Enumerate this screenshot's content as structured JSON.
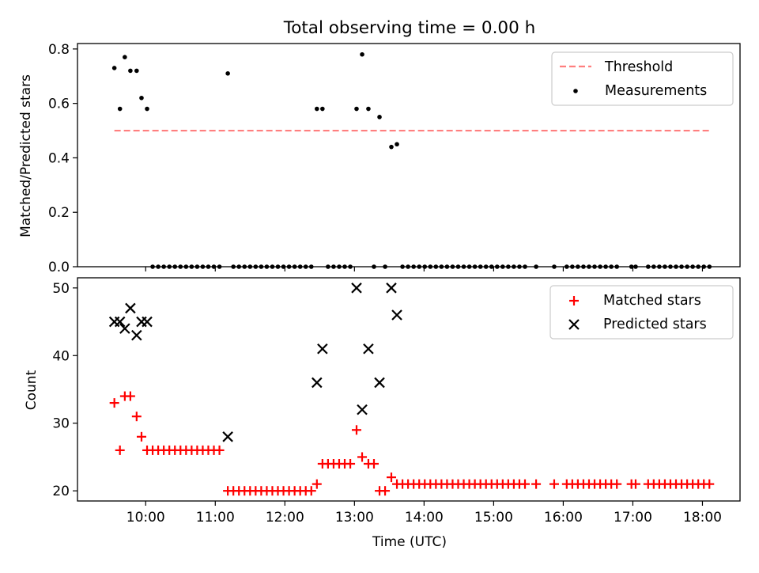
{
  "figure": {
    "title": "Total observing time = 0.00 h"
  },
  "colors": {
    "threshold": "#ff7f7f",
    "measurement": "#000000",
    "matched": "#ff0000",
    "predicted": "#000000"
  },
  "chart_data": [
    {
      "type": "scatter",
      "title": "Total observing time = 0.00 h",
      "xlabel": "",
      "ylabel": "Matched/Predicted stars",
      "x_unit": "hours UTC",
      "xlim": [
        9.02,
        18.54
      ],
      "ylim": [
        0.0,
        0.82
      ],
      "yticks": [
        0.0,
        0.2,
        0.4,
        0.6,
        0.8
      ],
      "ytick_labels": [
        "0.0",
        "0.2",
        "0.4",
        "0.6",
        "0.8"
      ],
      "xticks": [
        10,
        11,
        12,
        13,
        14,
        15,
        16,
        17,
        18
      ],
      "xtick_labels": [],
      "legend_position": "top-right",
      "legend": [
        "Threshold",
        "Measurements"
      ],
      "threshold": {
        "name": "Threshold",
        "y": 0.5,
        "x_range": [
          9.55,
          18.12
        ],
        "style": "dashed"
      },
      "series": [
        {
          "name": "Measurements",
          "x": [
            9.55,
            9.63,
            9.7,
            9.78,
            9.87,
            9.94,
            10.02,
            10.1,
            10.18,
            10.26,
            10.34,
            10.42,
            10.5,
            10.58,
            10.66,
            10.74,
            10.82,
            10.9,
            10.98,
            11.06,
            11.18,
            11.26,
            11.34,
            11.42,
            11.5,
            11.58,
            11.66,
            11.74,
            11.82,
            11.9,
            11.98,
            12.06,
            12.14,
            12.22,
            12.3,
            12.38,
            12.46,
            12.54,
            12.62,
            12.7,
            12.78,
            12.86,
            12.94,
            13.03,
            13.11,
            13.2,
            13.28,
            13.36,
            13.44,
            13.53,
            13.61,
            13.69,
            13.77,
            13.85,
            13.93,
            14.01,
            14.09,
            14.17,
            14.25,
            14.33,
            14.41,
            14.49,
            14.57,
            14.65,
            14.73,
            14.81,
            14.89,
            14.97,
            15.05,
            15.13,
            15.21,
            15.29,
            15.37,
            15.45,
            15.61,
            15.87,
            16.05,
            16.13,
            16.21,
            16.29,
            16.37,
            16.45,
            16.53,
            16.61,
            16.69,
            16.77,
            16.98,
            17.04,
            17.22,
            17.3,
            17.38,
            17.46,
            17.54,
            17.62,
            17.7,
            17.78,
            17.86,
            17.94,
            18.02,
            18.1
          ],
          "y": [
            0.73,
            0.58,
            0.77,
            0.72,
            0.72,
            0.62,
            0.58,
            0,
            0,
            0,
            0,
            0,
            0,
            0,
            0,
            0,
            0,
            0,
            0,
            0,
            0.71,
            0,
            0,
            0,
            0,
            0,
            0,
            0,
            0,
            0,
            0,
            0,
            0,
            0,
            0,
            0,
            0.58,
            0.58,
            0,
            0,
            0,
            0,
            0,
            0.58,
            0.78,
            0.58,
            0,
            0.55,
            0,
            0.44,
            0.45,
            0,
            0,
            0,
            0,
            0,
            0,
            0,
            0,
            0,
            0,
            0,
            0,
            0,
            0,
            0,
            0,
            0,
            0,
            0,
            0,
            0,
            0,
            0,
            0,
            0,
            0,
            0,
            0,
            0,
            0,
            0,
            0,
            0,
            0,
            0,
            0,
            0,
            0,
            0,
            0,
            0,
            0,
            0,
            0,
            0,
            0,
            0,
            0,
            0
          ]
        }
      ]
    },
    {
      "type": "scatter",
      "title": "",
      "xlabel": "Time (UTC)",
      "ylabel": "Count",
      "x_unit": "hours UTC",
      "xlim": [
        9.02,
        18.54
      ],
      "ylim": [
        18.5,
        51.5
      ],
      "yticks": [
        20,
        30,
        40,
        50
      ],
      "ytick_labels": [
        "20",
        "30",
        "40",
        "50"
      ],
      "xticks": [
        10,
        11,
        12,
        13,
        14,
        15,
        16,
        17,
        18
      ],
      "xtick_labels": [
        "10:00",
        "11:00",
        "12:00",
        "13:00",
        "14:00",
        "15:00",
        "16:00",
        "17:00",
        "18:00"
      ],
      "legend_position": "top-right",
      "legend": [
        "Matched stars",
        "Predicted stars"
      ],
      "series": [
        {
          "name": "Matched stars",
          "marker": "plus",
          "x": [
            9.55,
            9.63,
            9.7,
            9.78,
            9.87,
            9.94,
            10.02,
            10.1,
            10.18,
            10.26,
            10.34,
            10.42,
            10.5,
            10.58,
            10.66,
            10.74,
            10.82,
            10.9,
            10.98,
            11.06,
            11.18,
            11.26,
            11.34,
            11.42,
            11.5,
            11.58,
            11.66,
            11.74,
            11.82,
            11.9,
            11.98,
            12.06,
            12.14,
            12.22,
            12.3,
            12.38,
            12.46,
            12.54,
            12.62,
            12.7,
            12.78,
            12.86,
            12.94,
            13.03,
            13.11,
            13.2,
            13.28,
            13.36,
            13.44,
            13.53,
            13.61,
            13.69,
            13.77,
            13.85,
            13.93,
            14.01,
            14.09,
            14.17,
            14.25,
            14.33,
            14.41,
            14.49,
            14.57,
            14.65,
            14.73,
            14.81,
            14.89,
            14.97,
            15.05,
            15.13,
            15.21,
            15.29,
            15.37,
            15.45,
            15.61,
            15.87,
            16.05,
            16.13,
            16.21,
            16.29,
            16.37,
            16.45,
            16.53,
            16.61,
            16.69,
            16.77,
            16.98,
            17.04,
            17.22,
            17.3,
            17.38,
            17.46,
            17.54,
            17.62,
            17.7,
            17.78,
            17.86,
            17.94,
            18.02,
            18.1
          ],
          "y": [
            33,
            26,
            34,
            34,
            31,
            28,
            26,
            26,
            26,
            26,
            26,
            26,
            26,
            26,
            26,
            26,
            26,
            26,
            26,
            26,
            20,
            20,
            20,
            20,
            20,
            20,
            20,
            20,
            20,
            20,
            20,
            20,
            20,
            20,
            20,
            20,
            21,
            24,
            24,
            24,
            24,
            24,
            24,
            29,
            25,
            24,
            24,
            20,
            20,
            22,
            21,
            21,
            21,
            21,
            21,
            21,
            21,
            21,
            21,
            21,
            21,
            21,
            21,
            21,
            21,
            21,
            21,
            21,
            21,
            21,
            21,
            21,
            21,
            21,
            21,
            21,
            21,
            21,
            21,
            21,
            21,
            21,
            21,
            21,
            21,
            21,
            21,
            21,
            21,
            21,
            21,
            21,
            21,
            21,
            21,
            21,
            21,
            21,
            21,
            21
          ]
        },
        {
          "name": "Predicted stars",
          "marker": "cross",
          "x": [
            9.55,
            9.63,
            9.7,
            9.78,
            9.87,
            9.94,
            10.02,
            11.18,
            12.46,
            12.54,
            13.03,
            13.11,
            13.2,
            13.36,
            13.53,
            13.61
          ],
          "y": [
            45,
            45,
            44,
            47,
            43,
            45,
            45,
            28,
            36,
            41,
            50,
            32,
            41,
            36,
            50,
            46
          ]
        }
      ]
    }
  ]
}
